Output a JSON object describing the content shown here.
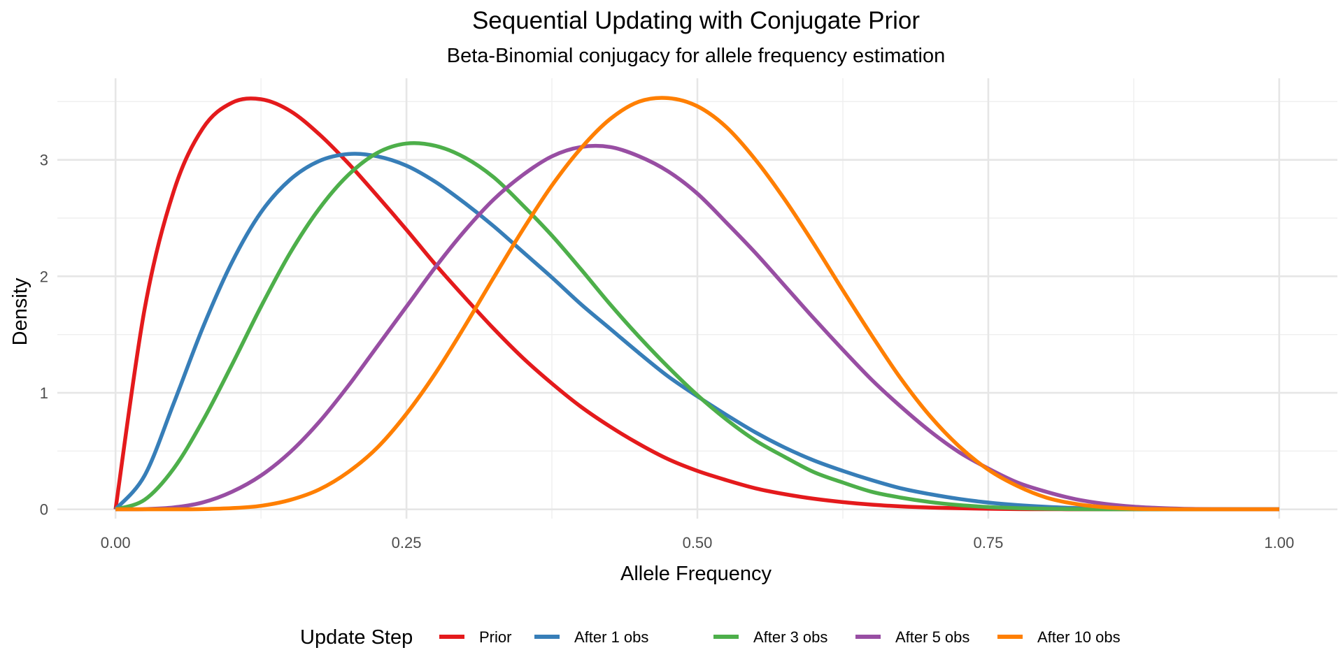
{
  "chart_data": {
    "type": "line",
    "title": "Sequential Updating with Conjugate Prior",
    "subtitle": "Beta-Binomial conjugacy for allele frequency estimation",
    "xlabel": "Allele Frequency",
    "ylabel": "Density",
    "xlim": [
      -0.05,
      1.05
    ],
    "ylim": [
      -0.08,
      3.7
    ],
    "x_ticks": [
      0,
      0.25,
      0.5,
      0.75,
      1
    ],
    "x_tick_labels": [
      "0.00",
      "0.25",
      "0.50",
      "0.75",
      "1.00"
    ],
    "y_ticks": [
      0,
      1,
      2,
      3
    ],
    "y_tick_labels": [
      "0",
      "1",
      "2",
      "3"
    ],
    "grid": true,
    "legend": {
      "title": "Update Step",
      "position": "bottom"
    },
    "x": [
      0,
      0.025,
      0.05,
      0.075,
      0.1,
      0.125,
      0.15,
      0.175,
      0.2,
      0.225,
      0.25,
      0.275,
      0.3,
      0.325,
      0.35,
      0.375,
      0.4,
      0.425,
      0.45,
      0.475,
      0.5,
      0.525,
      0.55,
      0.575,
      0.6,
      0.625,
      0.65,
      0.675,
      0.7,
      0.725,
      0.75,
      0.775,
      0.8,
      0.825,
      0.85,
      0.875,
      0.9,
      0.925,
      0.95,
      0.975,
      1
    ],
    "series": [
      {
        "name": "Prior",
        "color": "#E41A1C",
        "values": [
          0,
          1.72,
          2.73,
          3.27,
          3.49,
          3.52,
          3.42,
          3.22,
          2.97,
          2.69,
          2.4,
          2.1,
          1.82,
          1.55,
          1.3,
          1.08,
          0.88,
          0.71,
          0.56,
          0.43,
          0.33,
          0.25,
          0.18,
          0.13,
          0.091,
          0.062,
          0.04,
          0.025,
          0.015,
          0.009,
          0.005,
          0.002,
          0.001,
          0.0004,
          0.0001,
          0,
          0,
          0,
          0,
          0,
          0
        ]
      },
      {
        "name": "After 1 obs",
        "color": "#377EB8",
        "values": [
          0,
          0.29,
          0.91,
          1.56,
          2.12,
          2.55,
          2.83,
          2.99,
          3.05,
          3.03,
          2.95,
          2.81,
          2.63,
          2.43,
          2.21,
          1.99,
          1.76,
          1.55,
          1.34,
          1.14,
          0.97,
          0.81,
          0.66,
          0.53,
          0.42,
          0.33,
          0.25,
          0.18,
          0.13,
          0.089,
          0.058,
          0.036,
          0.021,
          0.011,
          0.005,
          0.002,
          0.001,
          0,
          0,
          0,
          0
        ]
      },
      {
        "name": "After 3 obs",
        "color": "#4DAF4A",
        "values": [
          0,
          0.082,
          0.35,
          0.76,
          1.24,
          1.74,
          2.2,
          2.58,
          2.87,
          3.06,
          3.14,
          3.12,
          3.02,
          2.85,
          2.61,
          2.35,
          2.06,
          1.76,
          1.48,
          1.22,
          0.98,
          0.77,
          0.59,
          0.45,
          0.32,
          0.23,
          0.15,
          0.1,
          0.062,
          0.036,
          0.02,
          0.01,
          0.005,
          0.002,
          0.0006,
          0,
          0,
          0,
          0,
          0,
          0
        ]
      },
      {
        "name": "After 5 obs",
        "color": "#984EA3",
        "values": [
          0,
          0.002,
          0.016,
          0.059,
          0.15,
          0.29,
          0.49,
          0.75,
          1.06,
          1.4,
          1.74,
          2.08,
          2.39,
          2.66,
          2.87,
          3.03,
          3.11,
          3.11,
          3.03,
          2.9,
          2.71,
          2.46,
          2.2,
          1.92,
          1.64,
          1.37,
          1.11,
          0.88,
          0.67,
          0.49,
          0.35,
          0.23,
          0.15,
          0.087,
          0.047,
          0.023,
          0.01,
          0.003,
          0.001,
          0,
          0
        ]
      },
      {
        "name": "After 10 obs",
        "color": "#FF7F00",
        "values": [
          0,
          0,
          0.0003,
          0.002,
          0.01,
          0.03,
          0.08,
          0.17,
          0.32,
          0.53,
          0.82,
          1.17,
          1.57,
          1.99,
          2.4,
          2.78,
          3.1,
          3.35,
          3.5,
          3.53,
          3.46,
          3.28,
          3.0,
          2.66,
          2.28,
          1.88,
          1.49,
          1.12,
          0.8,
          0.54,
          0.34,
          0.2,
          0.1,
          0.046,
          0.018,
          0.005,
          0.001,
          0,
          0,
          0,
          0
        ]
      }
    ]
  }
}
